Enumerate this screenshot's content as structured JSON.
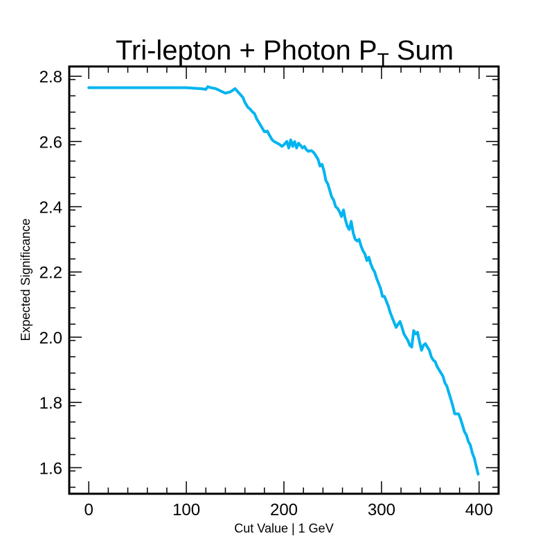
{
  "chart_data": {
    "type": "line",
    "title": "Tri-lepton + Photon",
    "title_symbol": "P",
    "title_subscript": "T",
    "title_suffix": "Sum",
    "xlabel": "Cut Value | 1 GeV",
    "ylabel": "Expected Significance",
    "xlim": [
      -20,
      420
    ],
    "ylim": [
      1.52,
      2.83
    ],
    "x_ticks": [
      0,
      100,
      200,
      300,
      400
    ],
    "x_tick_labels": [
      "0",
      "100",
      "200",
      "300",
      "400"
    ],
    "y_ticks": [
      1.6,
      1.8,
      2.0,
      2.2,
      2.4,
      2.6,
      2.8
    ],
    "y_tick_labels": [
      "1.6",
      "1.8",
      "2.0",
      "2.2",
      "2.4",
      "2.6",
      "2.8"
    ],
    "grid": false,
    "series": [
      {
        "color": "#00b4f0",
        "x": [
          0,
          50,
          100,
          110,
          115,
          120,
          122,
          125,
          130,
          135,
          140,
          145,
          148,
          150,
          152,
          155,
          158,
          160,
          163,
          165,
          168,
          170,
          172,
          175,
          178,
          180,
          183,
          185,
          188,
          190,
          193,
          195,
          198,
          200,
          203,
          205,
          207,
          209,
          211,
          213,
          215,
          217,
          219,
          221,
          223,
          225,
          228,
          230,
          232,
          235,
          237,
          239,
          241,
          243,
          245,
          247,
          249,
          251,
          253,
          255,
          257,
          259,
          261,
          263,
          265,
          267,
          269,
          271,
          273,
          275,
          277,
          279,
          281,
          283,
          285,
          287,
          289,
          291,
          293,
          295,
          297,
          299,
          301,
          303,
          305,
          307,
          309,
          311,
          313,
          315,
          317,
          319,
          321,
          323,
          325,
          327,
          329,
          331,
          333,
          335,
          337,
          339,
          341,
          343,
          345,
          347,
          349,
          351,
          353,
          355,
          357,
          359,
          361,
          363,
          365,
          367,
          369,
          371,
          373,
          375,
          377,
          379,
          381,
          383,
          385,
          387,
          389,
          391,
          393,
          395,
          397,
          399
        ],
        "y": [
          2.765,
          2.765,
          2.765,
          2.763,
          2.762,
          2.76,
          2.768,
          2.765,
          2.762,
          2.755,
          2.748,
          2.752,
          2.758,
          2.762,
          2.755,
          2.745,
          2.735,
          2.72,
          2.705,
          2.7,
          2.69,
          2.685,
          2.67,
          2.655,
          2.64,
          2.63,
          2.632,
          2.62,
          2.605,
          2.6,
          2.595,
          2.592,
          2.585,
          2.59,
          2.6,
          2.58,
          2.605,
          2.585,
          2.6,
          2.58,
          2.595,
          2.588,
          2.58,
          2.585,
          2.575,
          2.57,
          2.572,
          2.568,
          2.56,
          2.545,
          2.525,
          2.53,
          2.51,
          2.48,
          2.47,
          2.45,
          2.43,
          2.42,
          2.4,
          2.395,
          2.385,
          2.37,
          2.39,
          2.36,
          2.34,
          2.33,
          2.355,
          2.32,
          2.3,
          2.295,
          2.3,
          2.28,
          2.265,
          2.255,
          2.235,
          2.245,
          2.225,
          2.21,
          2.2,
          2.18,
          2.165,
          2.15,
          2.125,
          2.125,
          2.11,
          2.095,
          2.075,
          2.06,
          2.045,
          2.03,
          2.04,
          2.048,
          2.03,
          2.01,
          2.0,
          1.99,
          1.975,
          1.97,
          2.02,
          2.01,
          2.015,
          1.985,
          1.96,
          1.975,
          1.98,
          1.97,
          1.96,
          1.94,
          1.93,
          1.925,
          1.91,
          1.9,
          1.89,
          1.88,
          1.86,
          1.85,
          1.83,
          1.81,
          1.79,
          1.765,
          1.765,
          1.765,
          1.75,
          1.73,
          1.71,
          1.7,
          1.68,
          1.67,
          1.645,
          1.63,
          1.605,
          1.58
        ]
      }
    ]
  }
}
